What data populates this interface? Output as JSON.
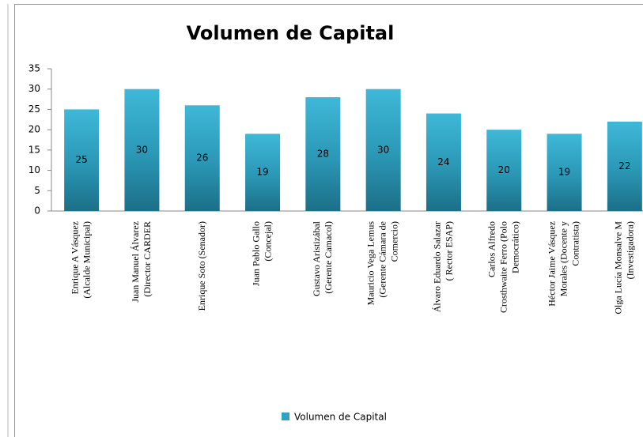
{
  "chart_data": {
    "type": "bar",
    "title": "Volumen de Capital",
    "categories": [
      "Enrique A Vásquez (Alcalde Municipal)",
      "Juan Manuel Álvarez (Director CARDER",
      "Enrique Soto (Senador)",
      "Juan Pablo Gallo (Concejal)",
      "Gustavo Aristizábal (Gerente Camacol)",
      "Mauricio Vega Lemus (Gerente Cámara de Comercio)",
      "Álvaro Eduardo Salazar ( Rector ESAP)",
      "Carlos Alfredo Crosthwaite Ferro (Polo Democrático)",
      "Héctor Jaime Vásquez Morales (Docente y Contratista)",
      "Olga Lucía Monsalve M (Investigadora)"
    ],
    "series": [
      {
        "name": "Volumen de Capital",
        "color": "#2ea3c4",
        "values": [
          25,
          30,
          26,
          19,
          28,
          30,
          24,
          20,
          19,
          22
        ]
      }
    ],
    "ylim": [
      0,
      35
    ],
    "yticks": [
      0,
      5,
      10,
      15,
      20,
      25,
      30,
      35
    ],
    "grid": false,
    "legend": "bottom"
  }
}
